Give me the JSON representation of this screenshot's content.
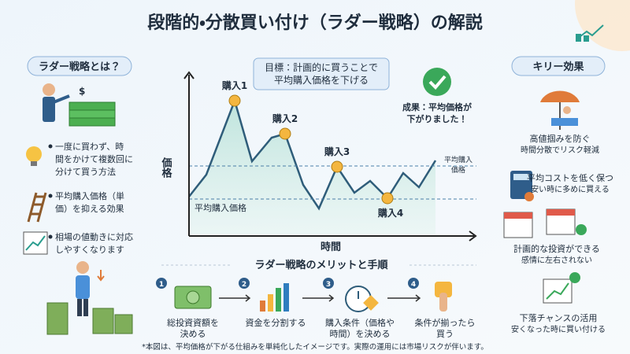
{
  "header": {
    "title": "段階的・分散買い付け（ラダー戦略）の解説"
  },
  "left": {
    "title": "ラダー戦略とは？",
    "items": [
      [
        "一度に買わず、時",
        "間をかけて複数回に",
        "分けて買う方法"
      ],
      [
        "平均購入価格（単",
        "価）を抑える効果"
      ],
      [
        "相場の値動きに対応",
        "しやすくなります"
      ]
    ]
  },
  "center": {
    "goal": [
      "目標：計画的に買うことで",
      "平均購入価格を下げる"
    ],
    "result": [
      "成果：平均価格が",
      "下がりました！"
    ],
    "y_label": "価格",
    "x_label": "時間",
    "purchases": [
      "購入1",
      "購入2",
      "購入3",
      "購入4"
    ],
    "avg_label": "平均購入価格",
    "avg_tag": [
      "平均購入",
      "価格"
    ]
  },
  "steps": {
    "title": "ラダー戦略のメリットと手順",
    "items": [
      {
        "num": "1",
        "label": [
          "総投資資額を",
          "決める"
        ]
      },
      {
        "num": "2",
        "label": [
          "資金を分割する"
        ]
      },
      {
        "num": "3",
        "label": [
          "購入条件（価格や",
          "時間）を決める"
        ]
      },
      {
        "num": "4",
        "label": [
          "条件が揃ったら",
          "買う"
        ]
      }
    ]
  },
  "right": {
    "title": "キリー効果",
    "items": [
      {
        "title": "高値掴みを防ぐ",
        "desc": "時間分散でリスク軽減"
      },
      {
        "title": "平均コストを低く保つ",
        "desc": "安い時に多めに買える"
      },
      {
        "title": "計画的な投資ができる",
        "desc": "感情に左右されない"
      },
      {
        "title": "下落チャンスの活用",
        "desc": "安くなった時に買い付ける"
      }
    ]
  },
  "footnote": "*本図は、平均価格が下がる仕組みを単純化したイメージです。実際の運用には市場リスクが伴います。"
}
